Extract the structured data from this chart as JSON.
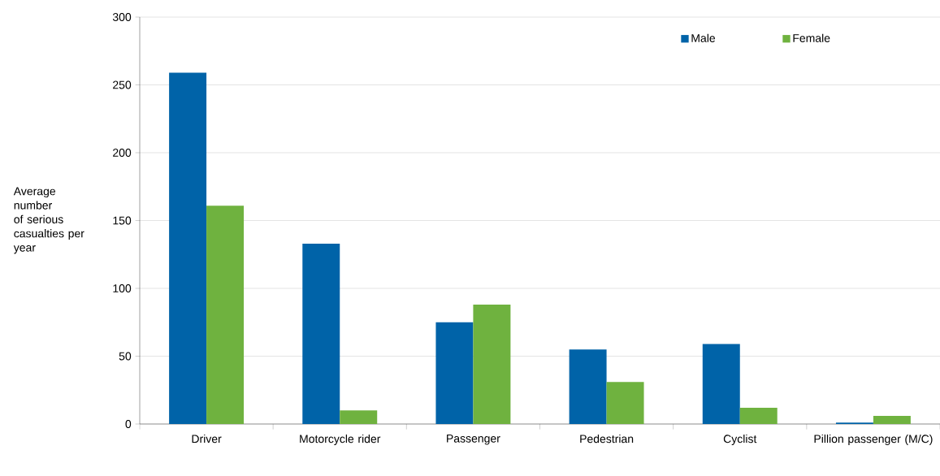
{
  "chart_data": {
    "type": "bar",
    "ylabel": "Average number of serious casualties per year",
    "categories": [
      "Driver",
      "Motorcycle rider",
      "Passenger",
      "Pedestrian",
      "Cyclist",
      "Pillion passenger (M/C)"
    ],
    "series": [
      {
        "name": "Male",
        "color": "#0063a8",
        "values": [
          259,
          133,
          75,
          55,
          59,
          1
        ]
      },
      {
        "name": "Female",
        "color": "#6fb23f",
        "values": [
          161,
          10,
          88,
          31,
          12,
          6
        ]
      }
    ],
    "ylim": [
      0,
      300
    ],
    "yticks": [
      0,
      50,
      100,
      150,
      200,
      250,
      300
    ],
    "grid": "y",
    "legend": "top right"
  }
}
